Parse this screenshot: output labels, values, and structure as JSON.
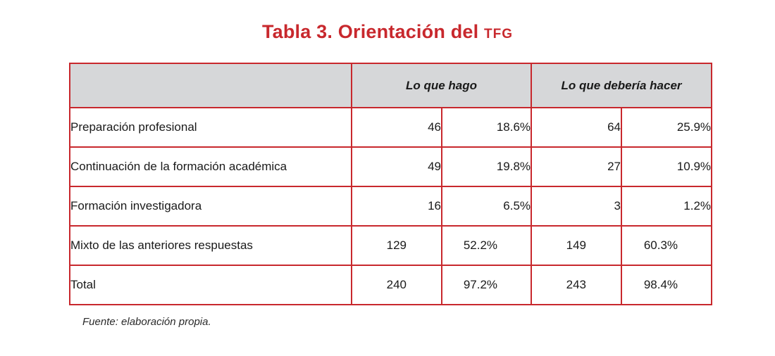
{
  "title": {
    "main": "Tabla 3. Orientación del ",
    "suffix": "TFG"
  },
  "table": {
    "headers": {
      "group1": "Lo que hago",
      "group2": "Lo que debería hacer"
    },
    "rows": [
      {
        "label": "Preparación profesional",
        "n1": "46",
        "p1": "18.6%",
        "n2": "64",
        "p2": "25.9%"
      },
      {
        "label": "Continuación de la formación académica",
        "n1": "49",
        "p1": "19.8%",
        "n2": "27",
        "p2": "10.9%"
      },
      {
        "label": "Formación investigadora",
        "n1": "16",
        "p1": "6.5%",
        "n2": "3",
        "p2": "1.2%"
      },
      {
        "label": "Mixto de las anteriores respuestas",
        "n1": "129",
        "p1": "52.2%",
        "n2": "149",
        "p2": "60.3%"
      },
      {
        "label": "Total",
        "n1": "240",
        "p1": "97.2%",
        "n2": "243",
        "p2": "98.4%"
      }
    ]
  },
  "footer": "Fuente: elaboración propia.",
  "colors": {
    "accent": "#c8282d",
    "header_bg": "#d6d7d9"
  }
}
